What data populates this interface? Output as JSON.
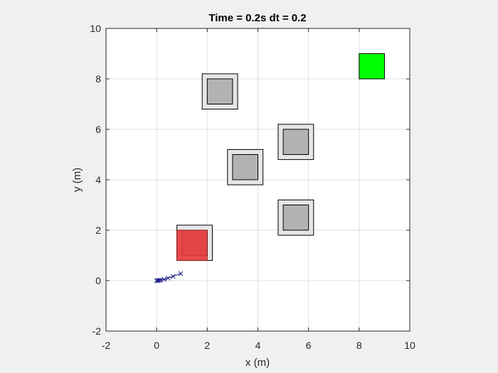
{
  "chart_data": {
    "type": "scatter",
    "title": "Time = 0.2s dt = 0.2",
    "xlabel": "x (m)",
    "ylabel": "y (m)",
    "xlim": [
      -2,
      10
    ],
    "ylim": [
      -2,
      10
    ],
    "xticks": [
      -2,
      0,
      2,
      4,
      6,
      8,
      10
    ],
    "yticks": [
      -2,
      0,
      2,
      4,
      6,
      8,
      10
    ],
    "grid": true,
    "obstacles": [
      {
        "outer": [
          1.8,
          6.8,
          3.2,
          8.2
        ],
        "inner": [
          2.0,
          7.0,
          3.0,
          8.0
        ]
      },
      {
        "outer": [
          4.8,
          4.8,
          6.2,
          6.2
        ],
        "inner": [
          5.0,
          5.0,
          6.0,
          6.0
        ]
      },
      {
        "outer": [
          2.8,
          3.8,
          4.2,
          5.2
        ],
        "inner": [
          3.0,
          4.0,
          4.0,
          5.0
        ]
      },
      {
        "outer": [
          4.8,
          1.8,
          6.2,
          3.2
        ],
        "inner": [
          5.0,
          2.0,
          6.0,
          3.0
        ]
      },
      {
        "outer": [
          0.8,
          0.8,
          2.2,
          2.2
        ],
        "inner": [
          1.0,
          1.0,
          2.0,
          2.0
        ]
      }
    ],
    "robot": {
      "rect": [
        0.8,
        0.8,
        2.0,
        2.0
      ],
      "color": "#e8393a"
    },
    "goal": {
      "rect": [
        8.0,
        8.0,
        9.0,
        9.0
      ],
      "color": "#00ff00"
    },
    "trajectory": {
      "color": "#1a1a8c",
      "x": [
        0.0,
        0.05,
        0.1,
        0.15,
        0.3,
        0.45,
        0.65,
        0.95
      ],
      "y": [
        0.0,
        0.0,
        0.01,
        0.02,
        0.05,
        0.1,
        0.17,
        0.28
      ]
    },
    "colors": {
      "axes_bg": "#ffffff",
      "figure_bg": "#f0f0f0",
      "grid": "#dfdfdf",
      "obstacle_outer": "#e6e6e6",
      "obstacle_inner": "#b3b3b3"
    }
  }
}
